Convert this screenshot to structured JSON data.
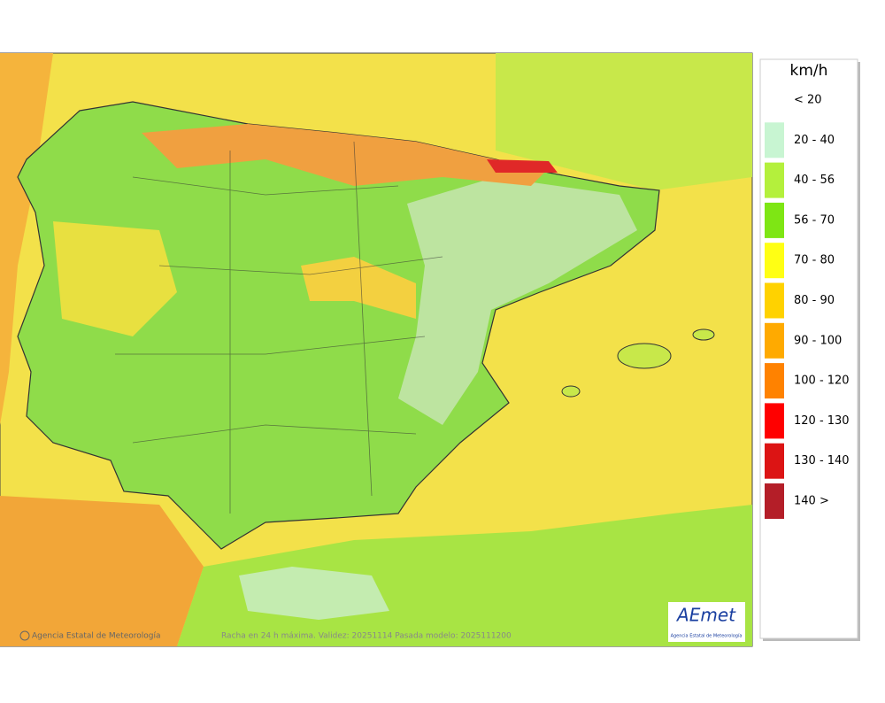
{
  "legend": {
    "unit": "km/h",
    "items": [
      {
        "label": "< 20",
        "color": "#ffffff"
      },
      {
        "label": "20 - 40",
        "color": "#c8f5d2"
      },
      {
        "label": "40 - 56",
        "color": "#b4f03c"
      },
      {
        "label": "56 - 70",
        "color": "#7ee614"
      },
      {
        "label": "70 - 80",
        "color": "#ffff14"
      },
      {
        "label": "80 - 90",
        "color": "#ffd200"
      },
      {
        "label": "90 - 100",
        "color": "#ffaa00"
      },
      {
        "label": "100 - 120",
        "color": "#ff8200"
      },
      {
        "label": "120 - 130",
        "color": "#ff0000"
      },
      {
        "label": "130 - 140",
        "color": "#dc1414"
      },
      {
        "label": "140 >",
        "color": "#b41e28"
      }
    ]
  },
  "footer": {
    "credit": "Agencia Estatal de Meteorología",
    "caption": "Racha en 24 h máxima. Validez: 20251114 Pasada modelo: 2025111200"
  },
  "logo": {
    "text": "AEmet",
    "subtitle": "Agencia Estatal de Meteorología"
  }
}
